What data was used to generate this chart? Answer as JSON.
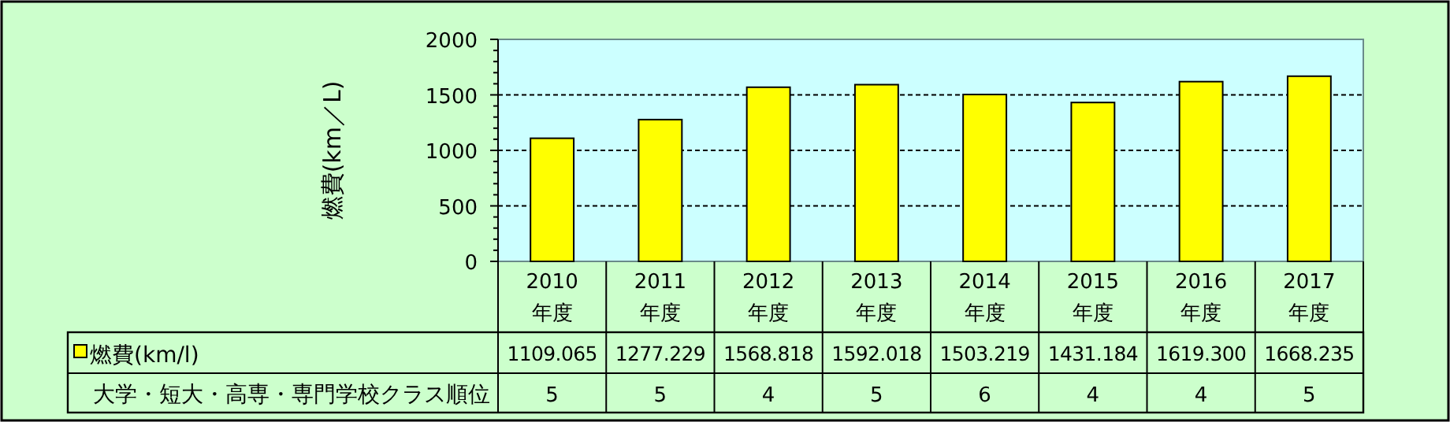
{
  "chart_data": {
    "type": "bar",
    "categories": [
      "2010 年度",
      "2011 年度",
      "2012 年度",
      "2013 年度",
      "2014 年度",
      "2015 年度",
      "2016 年度",
      "2017 年度"
    ],
    "series": [
      {
        "name": "燃費(km/l)",
        "color": "#ffff00",
        "values": [
          1109.065,
          1277.229,
          1568.818,
          1592.018,
          1503.219,
          1431.184,
          1619.3,
          1668.235
        ],
        "value_labels": [
          "1109.065",
          "1277.229",
          "1568.818",
          "1592.018",
          "1503.219",
          "1431.184",
          "1619.300",
          "1668.235"
        ]
      }
    ],
    "ylabel": "燃費(km／L)",
    "ylim": [
      0,
      2000
    ],
    "yticks": [
      0,
      500,
      1000,
      1500,
      2000
    ],
    "grid": "y",
    "legend": "bottom",
    "annotations": [
      "大学・短大・高専・専門学校クラス順位",
      "5",
      "5",
      "4",
      "5",
      "6",
      "4",
      "4",
      "5"
    ]
  }
}
